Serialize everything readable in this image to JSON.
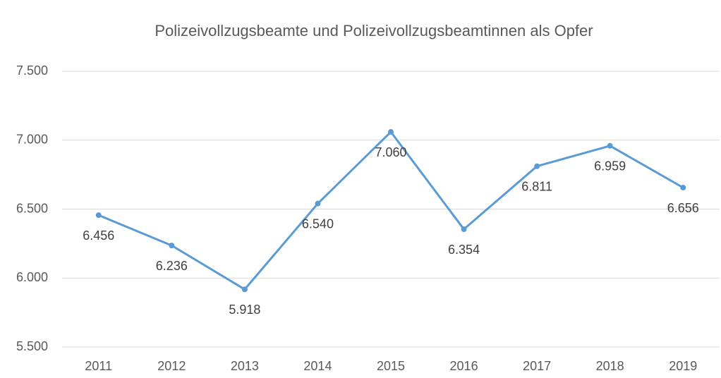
{
  "chart_data": {
    "type": "line",
    "title": "Polizeivollzugsbeamte und Polizeivollzugsbeamtinnen als Opfer",
    "categories": [
      "2011",
      "2012",
      "2013",
      "2014",
      "2015",
      "2016",
      "2017",
      "2018",
      "2019"
    ],
    "series": [
      {
        "name": "Polizeivollzugsbeamte und Polizeivollzugsbeamtinnen als Opfer",
        "color": "#5b9bd5",
        "values": [
          6456,
          6236,
          5918,
          6540,
          7060,
          6354,
          6811,
          6959,
          6656
        ],
        "value_labels": [
          "6.456",
          "6.236",
          "5.918",
          "6.540",
          "7.060",
          "6.354",
          "6.811",
          "6.959",
          "6.656"
        ]
      }
    ],
    "ylim": [
      5500,
      7500
    ],
    "yticks": [
      {
        "value": 5500,
        "label": "5.500"
      },
      {
        "value": 6000,
        "label": "6.000"
      },
      {
        "value": 6500,
        "label": "6.500"
      },
      {
        "value": 7000,
        "label": "7.000"
      },
      {
        "value": 7500,
        "label": "7.500"
      }
    ],
    "grid": true
  }
}
